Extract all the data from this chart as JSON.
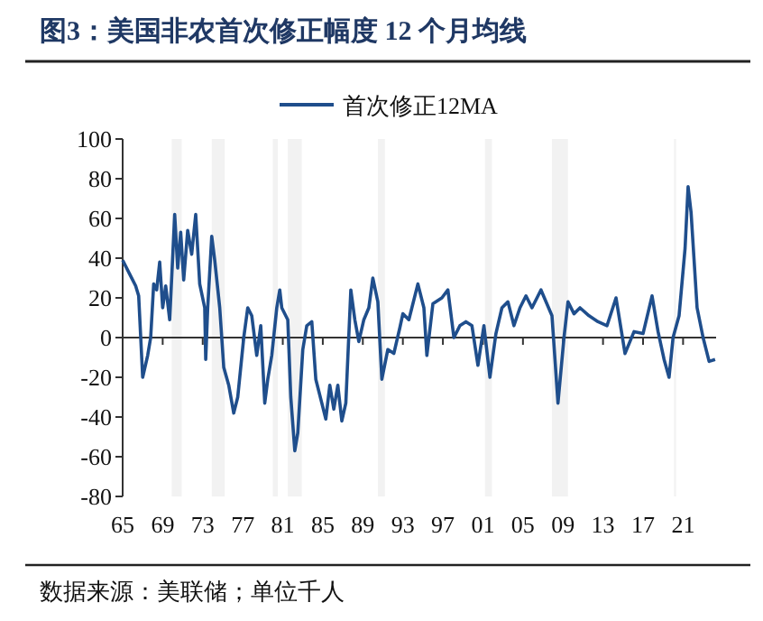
{
  "chart_data": {
    "type": "line",
    "title": "图3：美国非农首次修正幅度 12 个月均线",
    "annotations": [
      "数据来源：美联储；单位千人"
    ],
    "legend": "top",
    "line_style": "solid",
    "marker": "none",
    "xlim": [
      1965,
      2024.3
    ],
    "ylim": [
      -80,
      100
    ],
    "yticks": [
      -80,
      -60,
      -40,
      -20,
      0,
      20,
      40,
      60,
      80,
      100
    ],
    "xticks": [
      {
        "value": 1965,
        "label": "65"
      },
      {
        "value": 1969,
        "label": "69"
      },
      {
        "value": 1973,
        "label": "73"
      },
      {
        "value": 1977,
        "label": "77"
      },
      {
        "value": 1981,
        "label": "81"
      },
      {
        "value": 1985,
        "label": "85"
      },
      {
        "value": 1989,
        "label": "89"
      },
      {
        "value": 1993,
        "label": "93"
      },
      {
        "value": 1997,
        "label": "97"
      },
      {
        "value": 2001,
        "label": "01"
      },
      {
        "value": 2005,
        "label": "05"
      },
      {
        "value": 2009,
        "label": "09"
      },
      {
        "value": 2013,
        "label": "13"
      },
      {
        "value": 2017,
        "label": "17"
      },
      {
        "value": 2021,
        "label": "21"
      }
    ],
    "bands": [
      {
        "axis": "x",
        "from": 1969.9,
        "to": 1970.9,
        "color": "#f2f2f2"
      },
      {
        "axis": "x",
        "from": 1973.9,
        "to": 1975.2,
        "color": "#f2f2f2"
      },
      {
        "axis": "x",
        "from": 1980.0,
        "to": 1980.5,
        "color": "#f2f2f2"
      },
      {
        "axis": "x",
        "from": 1981.5,
        "to": 1982.9,
        "color": "#f2f2f2"
      },
      {
        "axis": "x",
        "from": 1990.5,
        "to": 1991.2,
        "color": "#f2f2f2"
      },
      {
        "axis": "x",
        "from": 2001.2,
        "to": 2001.9,
        "color": "#f2f2f2"
      },
      {
        "axis": "x",
        "from": 2007.9,
        "to": 2009.5,
        "color": "#f2f2f2"
      },
      {
        "axis": "x",
        "from": 2020.1,
        "to": 2020.3,
        "color": "#f2f2f2"
      }
    ],
    "series": [
      {
        "name": "首次修正12MA",
        "color": "#1f4e8c",
        "x": [
          1965.0,
          1965.7,
          1966.3,
          1966.6,
          1967.0,
          1967.5,
          1967.8,
          1968.1,
          1968.4,
          1968.7,
          1969.0,
          1969.3,
          1969.7,
          1970.2,
          1970.5,
          1970.8,
          1971.1,
          1971.5,
          1971.9,
          1972.3,
          1972.7,
          1973.2,
          1973.3,
          1973.5,
          1973.9,
          1974.2,
          1974.7,
          1975.1,
          1975.6,
          1976.1,
          1976.5,
          1977.1,
          1977.5,
          1977.9,
          1978.4,
          1978.8,
          1979.2,
          1979.5,
          1979.9,
          1980.4,
          1980.7,
          1980.9,
          1981.5,
          1981.8,
          1982.2,
          1982.5,
          1983.0,
          1983.4,
          1983.9,
          1984.3,
          1984.9,
          1985.3,
          1985.7,
          1986.1,
          1986.5,
          1986.9,
          1987.3,
          1987.8,
          1988.2,
          1988.6,
          1989.1,
          1989.6,
          1990.0,
          1990.5,
          1990.9,
          1991.5,
          1992.1,
          1992.7,
          1993.0,
          1993.6,
          1994.5,
          1995.1,
          1995.4,
          1996.0,
          1996.9,
          1997.5,
          1998.1,
          1998.7,
          1999.3,
          1999.9,
          2000.5,
          2001.1,
          2001.7,
          2002.3,
          2002.9,
          2003.5,
          2004.1,
          2004.7,
          2005.3,
          2005.9,
          2006.8,
          2007.9,
          2008.5,
          2009.1,
          2009.5,
          2010.1,
          2010.7,
          2011.6,
          2012.5,
          2013.4,
          2014.3,
          2015.2,
          2016.1,
          2017.0,
          2017.9,
          2018.5,
          2019.1,
          2019.6,
          2020.0,
          2020.6,
          2021.2,
          2021.5,
          2021.8,
          2022.4,
          2023.0,
          2023.6,
          2024.2
        ],
        "values": [
          39,
          32,
          26,
          21,
          -20,
          -9,
          0,
          27,
          24,
          38,
          15,
          26,
          9,
          62,
          35,
          53,
          29,
          54,
          42,
          62,
          27,
          15,
          -11,
          15,
          51,
          39,
          15,
          -15,
          -24,
          -38,
          -30,
          0,
          15,
          11,
          -9,
          6,
          -33,
          -21,
          -9,
          15,
          24,
          15,
          9,
          -30,
          -57,
          -48,
          -6,
          6,
          8,
          -21,
          -33,
          -41,
          -24,
          -36,
          -24,
          -42,
          -33,
          24,
          9,
          -2,
          9,
          15,
          30,
          18,
          -21,
          -6,
          -8,
          5,
          12,
          9,
          27,
          15,
          -9,
          17,
          20,
          24,
          0,
          6,
          8,
          6,
          -14,
          6,
          -20,
          2,
          15,
          18,
          6,
          15,
          21,
          15,
          24,
          11,
          -33,
          0,
          18,
          12,
          15,
          11,
          8,
          6,
          20,
          -8,
          3,
          2,
          21,
          3,
          -11,
          -20,
          0,
          11,
          45,
          76,
          63,
          15,
          0,
          -12,
          -11
        ]
      }
    ]
  }
}
